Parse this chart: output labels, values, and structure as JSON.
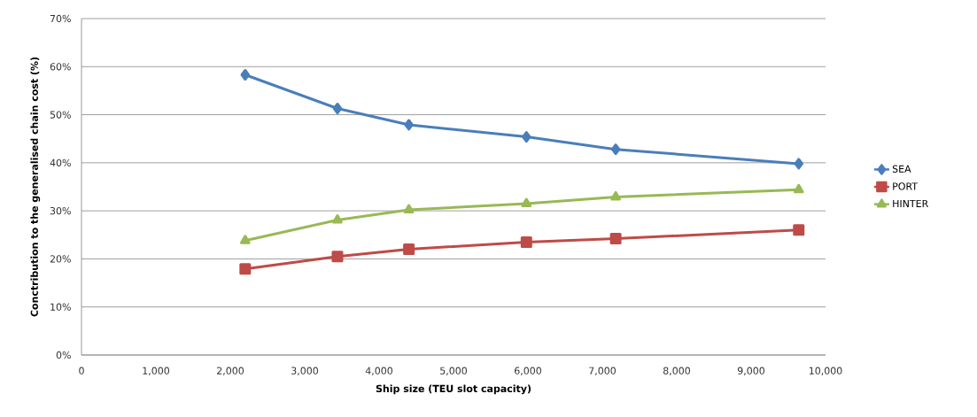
{
  "chart_data": {
    "type": "line",
    "xlabel": "Ship size (TEU slot capacity)",
    "ylabel": "Conctribution to the generalised chain cost (%)",
    "x": [
      2200,
      3440,
      4400,
      5980,
      7180,
      9640
    ],
    "series": [
      {
        "name": "SEA",
        "color": "#4a7ebb",
        "marker": "diamond",
        "values": [
          58.3,
          51.3,
          47.9,
          45.4,
          42.8,
          39.8
        ]
      },
      {
        "name": "PORT",
        "color": "#be4b48",
        "marker": "square",
        "values": [
          17.9,
          20.5,
          22.0,
          23.5,
          24.2,
          26.0
        ]
      },
      {
        "name": "HINTER",
        "color": "#98b954",
        "marker": "triangle",
        "values": [
          23.8,
          28.1,
          30.2,
          31.5,
          32.9,
          34.4
        ]
      }
    ],
    "xlim": [
      0,
      10000
    ],
    "xticks": [
      0,
      {
        "value": 1000,
        "label": "1,000"
      },
      {
        "value": 2000,
        "label": "2,000"
      },
      {
        "value": 3000,
        "label": "3,000"
      },
      {
        "value": 4000,
        "label": "4,000"
      },
      {
        "value": 5000,
        "label": "5,000"
      },
      {
        "value": 6000,
        "label": "6,000"
      },
      {
        "value": 7000,
        "label": "7,000"
      },
      {
        "value": 8000,
        "label": "8,000"
      },
      {
        "value": 9000,
        "label": "9,000"
      },
      {
        "value": 10000,
        "label": "10,000"
      }
    ],
    "ylim": [
      0,
      70
    ],
    "yticks": [
      {
        "value": 0,
        "label": "0%"
      },
      {
        "value": 10,
        "label": "10%"
      },
      {
        "value": 20,
        "label": "20%"
      },
      {
        "value": 30,
        "label": "30%"
      },
      {
        "value": 40,
        "label": "40%"
      },
      {
        "value": 50,
        "label": "50%"
      },
      {
        "value": 60,
        "label": "60%"
      },
      {
        "value": 70,
        "label": "70%"
      }
    ],
    "grid": "y",
    "legend": "right",
    "line_style": "solid"
  }
}
